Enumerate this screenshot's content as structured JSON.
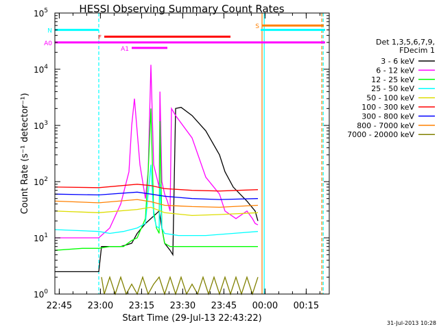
{
  "chart_data": {
    "type": "line",
    "title": "HESSI Observing Summary Count Rates",
    "xlabel": "Start Time (29-Jul-13 22:43:22)",
    "ylabel": "Count Rate (s⁻¹ detector⁻¹)",
    "yscale": "log",
    "ylim": [
      1,
      100000
    ],
    "xlim_minutes": [
      0,
      100
    ],
    "x_ticks": [
      {
        "minute": 1.6,
        "label": "22:45"
      },
      {
        "minute": 16.6,
        "label": "23:00"
      },
      {
        "minute": 31.6,
        "label": "23:15"
      },
      {
        "minute": 46.6,
        "label": "23:30"
      },
      {
        "minute": 61.6,
        "label": "23:45"
      },
      {
        "minute": 76.6,
        "label": "00:00"
      },
      {
        "minute": 91.6,
        "label": "00:15"
      }
    ],
    "y_ticks": [
      {
        "value": 1,
        "base": "10",
        "exp": "0"
      },
      {
        "value": 10,
        "base": "10",
        "exp": "1"
      },
      {
        "value": 100,
        "base": "10",
        "exp": "2"
      },
      {
        "value": 1000,
        "base": "10",
        "exp": "3"
      },
      {
        "value": 10000,
        "base": "10",
        "exp": "4"
      },
      {
        "value": 100000,
        "base": "10",
        "exp": "5"
      }
    ],
    "legend": {
      "header": [
        "Det 1,3,5,6,7,9,",
        "FDecim 1"
      ],
      "placement": "right",
      "entries": [
        {
          "label": "3 - 6 keV",
          "color": "#000000"
        },
        {
          "label": "6 - 12 keV",
          "color": "#ff00ff"
        },
        {
          "label": "12 - 25 keV",
          "color": "#00ff00"
        },
        {
          "label": "25 - 50 keV",
          "color": "#00ffff"
        },
        {
          "label": "50 - 100 keV",
          "color": "#dddd00"
        },
        {
          "label": "100 - 300 keV",
          "color": "#ff0000"
        },
        {
          "label": "300 - 800 keV",
          "color": "#0000ff"
        },
        {
          "label": "800 - 7000 keV",
          "color": "#ff8000"
        },
        {
          "label": "7000 - 20000 keV",
          "color": "#808000"
        }
      ]
    },
    "series": [
      {
        "name": "3 - 6 keV",
        "color": "#000000",
        "x": [
          0,
          16,
          17,
          24,
          28,
          30,
          33,
          35,
          38,
          39,
          40,
          42,
          43,
          44,
          46,
          50,
          55,
          60,
          62,
          65,
          70,
          73,
          74
        ],
        "y": [
          2.5,
          2.5,
          7,
          7,
          8,
          12,
          18,
          22,
          30,
          15,
          8,
          6,
          5,
          2000,
          2100,
          1500,
          800,
          300,
          150,
          80,
          45,
          30,
          20
        ]
      },
      {
        "name": "6 - 12 keV",
        "color": "#ff00ff",
        "x": [
          0,
          16,
          20,
          24,
          27,
          28,
          29,
          31,
          33,
          34,
          35,
          36,
          38,
          38.3,
          39,
          40,
          41,
          42,
          42.5,
          44,
          50,
          55,
          60,
          62,
          66,
          70,
          72,
          73,
          74
        ],
        "y": [
          10,
          10,
          15,
          40,
          150,
          1000,
          3000,
          200,
          50,
          150,
          12000,
          200,
          80,
          4000,
          100,
          60,
          45,
          30,
          2000,
          1500,
          600,
          120,
          60,
          30,
          22,
          30,
          22,
          18,
          17
        ]
      },
      {
        "name": "12 - 25 keV",
        "color": "#00ff00",
        "x": [
          0,
          10,
          16,
          20,
          25,
          28,
          30,
          33,
          34,
          35,
          36,
          37,
          38,
          38.3,
          39,
          40,
          42,
          44,
          48,
          55,
          65,
          74
        ],
        "y": [
          6,
          6.5,
          6.5,
          7,
          7,
          9,
          10,
          22,
          150,
          2000,
          30,
          15,
          12,
          1200,
          15,
          8,
          7,
          7,
          7,
          7,
          7,
          7
        ]
      },
      {
        "name": "25 - 50 keV",
        "color": "#00ffff",
        "x": [
          0,
          16,
          20,
          25,
          30,
          33,
          34,
          35,
          36,
          37,
          38,
          38.3,
          39,
          40,
          45,
          55,
          65,
          74
        ],
        "y": [
          14,
          13,
          12,
          13,
          15,
          18,
          60,
          200,
          25,
          16,
          15,
          90,
          15,
          12,
          11,
          11,
          12,
          13
        ]
      },
      {
        "name": "50 - 100 keV",
        "color": "#dddd00",
        "x": [
          0,
          16,
          30,
          35,
          40,
          50,
          60,
          74
        ],
        "y": [
          30,
          28,
          32,
          35,
          28,
          25,
          26,
          28
        ]
      },
      {
        "name": "100 - 300 keV",
        "color": "#ff0000",
        "x": [
          0,
          16,
          30,
          35,
          40,
          50,
          60,
          74
        ],
        "y": [
          80,
          78,
          90,
          85,
          75,
          70,
          68,
          72
        ]
      },
      {
        "name": "300 - 800 keV",
        "color": "#0000ff",
        "x": [
          0,
          16,
          30,
          35,
          40,
          50,
          60,
          74
        ],
        "y": [
          60,
          58,
          65,
          60,
          55,
          50,
          48,
          50
        ]
      },
      {
        "name": "800 - 7000 keV",
        "color": "#ff8000",
        "x": [
          0,
          16,
          30,
          35,
          40,
          50,
          60,
          74
        ],
        "y": [
          45,
          42,
          48,
          44,
          38,
          36,
          35,
          38
        ]
      },
      {
        "name": "7000 - 20000 keV",
        "color": "#808000",
        "x": [
          17,
          18,
          20,
          22,
          24,
          26,
          28,
          30,
          32,
          34,
          36,
          38,
          40,
          42,
          44,
          46,
          48,
          50,
          52,
          54,
          56,
          58,
          60,
          62,
          64,
          66,
          68,
          70,
          72,
          74
        ],
        "y": [
          2,
          1,
          2,
          1,
          2,
          1,
          1.5,
          1,
          2,
          1,
          1.5,
          2,
          1,
          2,
          1,
          2,
          1,
          1.5,
          1,
          2,
          1,
          2,
          1,
          2,
          1,
          2,
          1,
          2,
          1,
          2
        ]
      }
    ],
    "flags": [
      {
        "label": "N",
        "color": "#00ffff",
        "y_value": 50000,
        "x_ranges": [
          [
            0,
            16
          ],
          [
            75,
            98.5
          ]
        ]
      },
      {
        "label": "S",
        "color": "#ff8000",
        "y_value": 60000,
        "x_ranges": [
          [
            75.5,
            98
          ]
        ]
      },
      {
        "label": "F",
        "color": "#ff0000",
        "y_value": 38000,
        "x_ranges": [
          [
            18,
            64
          ]
        ]
      },
      {
        "label": "A0",
        "color": "#ff00ff",
        "y_value": 30000,
        "x_ranges": [
          [
            0,
            98.5
          ]
        ]
      },
      {
        "label": "A1",
        "color": "#ff00ff",
        "y_value": 24000,
        "x_ranges": [
          [
            28,
            41
          ]
        ]
      }
    ],
    "vertical_markers": [
      {
        "minute": 16,
        "color": "#00ffff",
        "style": "dashed"
      },
      {
        "minute": 75.5,
        "color": "#ff8000",
        "style": "solid"
      },
      {
        "minute": 76.3,
        "color": "#00ffff",
        "style": "solid"
      },
      {
        "minute": 97.3,
        "color": "#ff8000",
        "style": "dashed"
      },
      {
        "minute": 97.8,
        "color": "#00ffff",
        "style": "dashed"
      }
    ],
    "timestamp": "31-Jul-2013 10:28"
  }
}
